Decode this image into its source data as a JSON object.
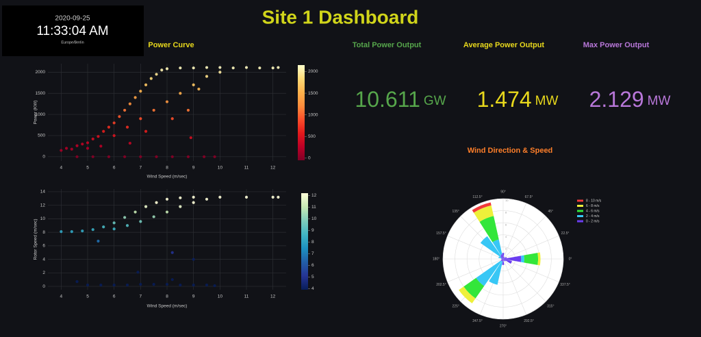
{
  "clock": {
    "date": "2020-09-25",
    "time": "11:33:04 AM",
    "timezone": "Europe/Berlin"
  },
  "title": "Site 1 Dashboard",
  "stats": [
    {
      "label": "Total Power Output",
      "value": "10.611",
      "unit": "GW",
      "color": "#56a64b"
    },
    {
      "label": "Average Power Output",
      "value": "1.474",
      "unit": "MW",
      "color": "#e8d81c"
    },
    {
      "label": "Max Power Output",
      "value": "2.129",
      "unit": "MW",
      "color": "#b877d9"
    }
  ],
  "chart_data": [
    {
      "type": "scatter",
      "title": "Power Curve",
      "x_label": "Wind Speed (m/sec)",
      "y_label": "Power (KW)",
      "xlim": [
        3.5,
        12.5
      ],
      "xticks": [
        4,
        5,
        6,
        7,
        8,
        9,
        10,
        11,
        12
      ],
      "ylim": [
        -100,
        2200
      ],
      "yticks": [
        0,
        500,
        1000,
        1500,
        2000
      ],
      "grid": true,
      "clim": [
        -50,
        2150
      ],
      "cticks": [
        0,
        500,
        1000,
        1500,
        2000
      ],
      "colorscale": [
        "#800026",
        "#bd0026",
        "#e31a1c",
        "#fc4e2a",
        "#fd8d3c",
        "#feb24c",
        "#fed976",
        "#ffffcc"
      ],
      "x": [
        4.0,
        4.2,
        4.4,
        4.6,
        4.8,
        5.0,
        5.2,
        5.4,
        5.6,
        5.8,
        6.0,
        6.2,
        6.4,
        6.6,
        6.8,
        7.0,
        7.2,
        7.4,
        7.6,
        7.8,
        8.0,
        8.5,
        9.0,
        9.5,
        10.0,
        10.5,
        11.0,
        11.5,
        12.0,
        12.2,
        6.0,
        6.5,
        7.0,
        7.5,
        8.0,
        8.5,
        9.0,
        9.5,
        10.0,
        7.2,
        8.2,
        9.2,
        8.8,
        5.5,
        5.0,
        4.6,
        5.2,
        5.8,
        6.4,
        7.0,
        7.6,
        8.2,
        8.8,
        9.4,
        9.8,
        8.9,
        6.6
      ],
      "values": [
        150,
        200,
        180,
        260,
        300,
        330,
        420,
        480,
        600,
        700,
        800,
        950,
        1100,
        1250,
        1400,
        1550,
        1700,
        1850,
        1950,
        2050,
        2080,
        2100,
        2100,
        2110,
        2110,
        2100,
        2110,
        2100,
        2100,
        2110,
        500,
        700,
        900,
        1100,
        1300,
        1500,
        1700,
        1900,
        2000,
        600,
        900,
        1600,
        1100,
        250,
        200,
        0,
        0,
        0,
        0,
        0,
        0,
        0,
        0,
        0,
        0,
        450,
        320
      ]
    },
    {
      "type": "scatter",
      "x_label": "Wind Speed (m/sec)",
      "y_label": "Rotor Speed (m/sec)",
      "xlim": [
        3.5,
        12.5
      ],
      "xticks": [
        4,
        5,
        6,
        7,
        8,
        9,
        10,
        11,
        12
      ],
      "ylim": [
        -0.5,
        14.4
      ],
      "yticks": [
        0,
        2,
        4,
        6,
        8,
        10,
        12,
        14
      ],
      "grid": true,
      "clim": [
        3.9,
        12.2
      ],
      "cticks": [
        4,
        5,
        6,
        7,
        8,
        9,
        10,
        11,
        12
      ],
      "colorscale": [
        "#081d58",
        "#253494",
        "#225ea8",
        "#1d91c0",
        "#41b6c4",
        "#7fcdbb",
        "#c7e9b4",
        "#ffffd9"
      ],
      "x": [
        4.0,
        4.4,
        4.8,
        5.2,
        5.6,
        6.0,
        6.4,
        6.8,
        7.2,
        7.6,
        8.0,
        8.5,
        9.0,
        10.0,
        11.0,
        12.0,
        12.2,
        6.0,
        6.5,
        7.0,
        7.5,
        8.0,
        8.5,
        9.0,
        9.5,
        5.4,
        8.2,
        9.0,
        6.9,
        8.2,
        4.6,
        5.0,
        5.5,
        6.0,
        6.5,
        7.0,
        7.5,
        8.0,
        8.5,
        9.0,
        9.5,
        9.8
      ],
      "values": [
        8.1,
        8.1,
        8.2,
        8.4,
        8.8,
        9.4,
        10.2,
        11.0,
        11.8,
        12.4,
        12.9,
        13.1,
        13.2,
        13.2,
        13.2,
        13.2,
        13.2,
        8.5,
        9.0,
        9.6,
        10.3,
        11.0,
        11.8,
        12.4,
        12.9,
        6.7,
        5.0,
        4.0,
        2.1,
        1.0,
        0.7,
        0.2,
        0.2,
        0.2,
        0.2,
        0.3,
        0.3,
        0.3,
        0.2,
        0.2,
        0.2,
        0.1
      ]
    },
    {
      "type": "barpolar",
      "title": "Wind Direction & Speed",
      "rlim": [
        0,
        10
      ],
      "rticks": [
        2,
        4,
        6,
        8,
        10
      ],
      "angles": [
        {
          "value": 0,
          "label": "0°"
        },
        {
          "value": 22.5,
          "label": "22.5°"
        },
        {
          "value": 45,
          "label": "45°"
        },
        {
          "value": 67.5,
          "label": "67.5°"
        },
        {
          "value": 90,
          "label": "90°"
        },
        {
          "value": 112.5,
          "label": "112.5°"
        },
        {
          "value": 135,
          "label": "135°"
        },
        {
          "value": 157.5,
          "label": "157.5°"
        },
        {
          "value": 180,
          "label": "180°"
        },
        {
          "value": 202.5,
          "label": "202.5°"
        },
        {
          "value": 225,
          "label": "225°"
        },
        {
          "value": 247.5,
          "label": "247.5°"
        },
        {
          "value": 270,
          "label": "270°"
        },
        {
          "value": 292.5,
          "label": "292.5°"
        },
        {
          "value": 315,
          "label": "315°"
        },
        {
          "value": 337.5,
          "label": "337.5°"
        }
      ],
      "series": [
        {
          "name": "8 - 10 m/s",
          "color": "#f23a3a",
          "values": [
            0,
            0,
            0,
            0,
            0,
            0.5,
            0,
            0,
            0,
            0,
            0,
            0,
            0,
            0,
            0,
            0
          ]
        },
        {
          "name": "6 - 8 m/s",
          "color": "#eef03a",
          "values": [
            0.4,
            0,
            0,
            0,
            0,
            1.8,
            0,
            0,
            0,
            0,
            1,
            0,
            0,
            0,
            0,
            0
          ]
        },
        {
          "name": "4 - 6 m/s",
          "color": "#33e63a",
          "values": [
            2.3,
            0,
            0,
            0,
            0,
            4,
            0,
            0,
            0,
            0,
            2.5,
            0,
            0,
            0,
            0,
            0
          ]
        },
        {
          "name": "2 - 4 m/s",
          "color": "#38c7f5",
          "values": [
            0.5,
            0,
            0,
            0,
            0,
            2.5,
            4,
            0.5,
            0,
            0,
            5,
            4,
            0,
            0,
            0,
            0
          ]
        },
        {
          "name": "0 - 2 m/s",
          "color": "#6a3df0",
          "values": [
            3,
            0.6,
            0.3,
            0.4,
            1,
            0.8,
            0.6,
            0.3,
            0.3,
            0.3,
            0.5,
            0.4,
            1,
            0.3,
            0.5,
            1.5
          ]
        }
      ]
    }
  ]
}
